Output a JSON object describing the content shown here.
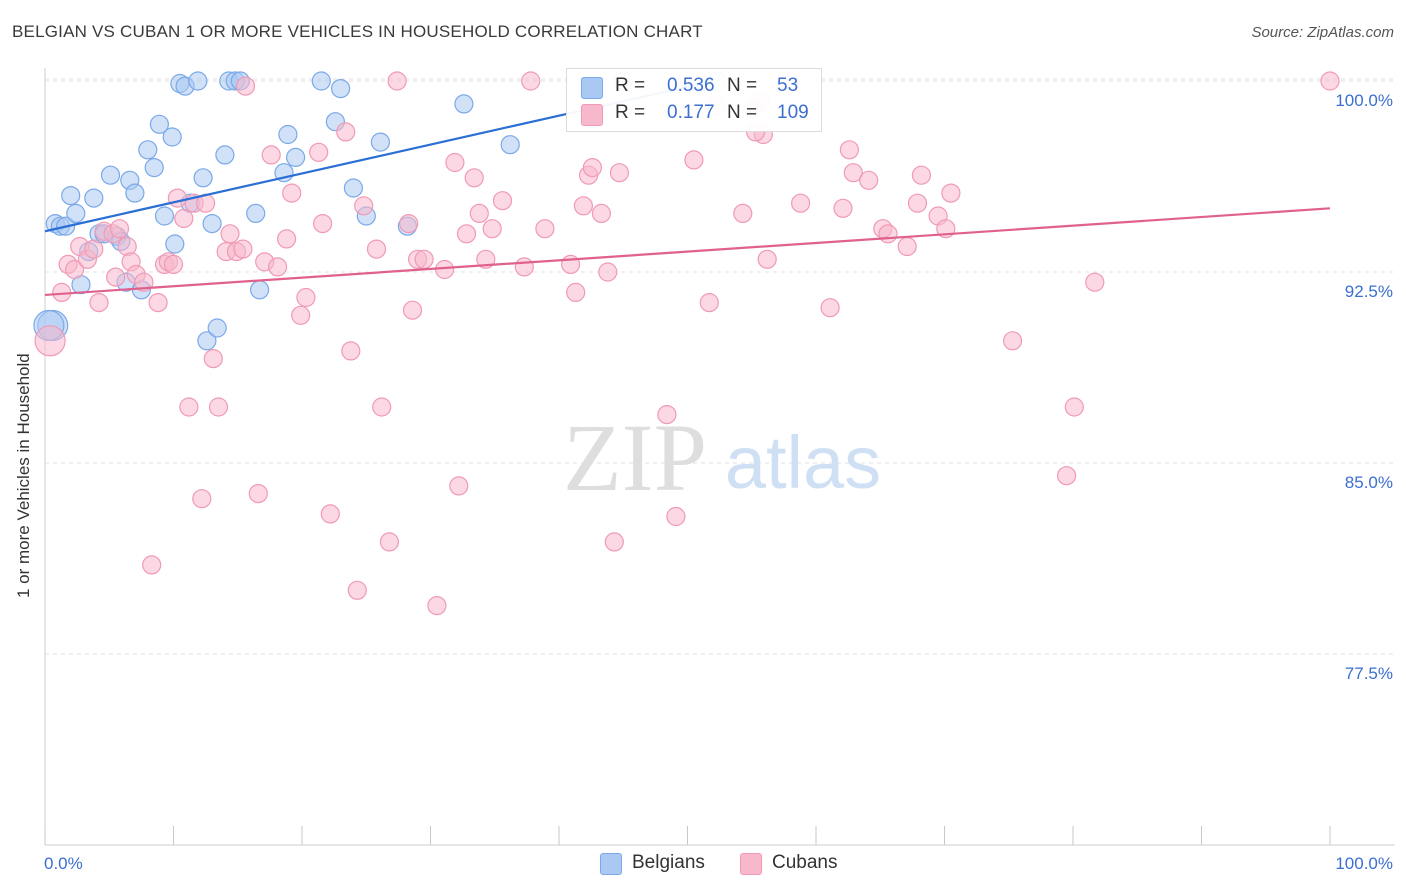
{
  "title": "BELGIAN VS CUBAN 1 OR MORE VEHICLES IN HOUSEHOLD CORRELATION CHART",
  "source": "Source: ZipAtlas.com",
  "watermark": {
    "zip": "ZIP",
    "atlas": "atlas"
  },
  "legend": {
    "rows": [
      {
        "r_label": "R =",
        "r_value": "0.536",
        "n_label": "N =",
        "n_value": "53",
        "color": "#a9c8f2"
      },
      {
        "r_label": "R =",
        "r_value": "0.177",
        "n_label": "N =",
        "n_value": "109",
        "color": "#f7b8cc"
      }
    ]
  },
  "bottom_legend": {
    "belgians": "Belgians",
    "cubans": "Cubans"
  },
  "chart_data": {
    "type": "scatter",
    "title": "BELGIAN VS CUBAN 1 OR MORE VEHICLES IN HOUSEHOLD CORRELATION CHART",
    "xlabel": "",
    "ylabel": "1 or more Vehicles in Household",
    "xlim": [
      0,
      100
    ],
    "ylim": [
      70.0,
      101.0
    ],
    "x_tick_labels": [
      "0.0%",
      "100.0%"
    ],
    "y_ticks": [
      77.5,
      85.0,
      92.5,
      100.0
    ],
    "y_tick_labels": [
      "77.5%",
      "85.0%",
      "92.5%",
      "100.0%"
    ],
    "grid": true,
    "legend_placement": "bottom-center",
    "series": [
      {
        "name": "Belgians",
        "color": "#7aa9e8",
        "fill": "#a9c8f2",
        "trend": {
          "x": [
            0,
            52
          ],
          "y": [
            94.1,
            100.0
          ],
          "color": "#2b6fd4"
        },
        "points": [
          [
            0.6,
            90.4
          ],
          [
            0.8,
            94.4
          ],
          [
            1.2,
            94.3
          ],
          [
            1.6,
            94.3
          ],
          [
            2.0,
            95.5
          ],
          [
            2.4,
            94.8
          ],
          [
            2.8,
            92.0
          ],
          [
            3.4,
            93.3
          ],
          [
            3.8,
            95.4
          ],
          [
            4.2,
            94.0
          ],
          [
            4.6,
            94.0
          ],
          [
            5.1,
            96.3
          ],
          [
            5.6,
            93.9
          ],
          [
            5.9,
            93.7
          ],
          [
            6.3,
            92.1
          ],
          [
            6.6,
            96.1
          ],
          [
            7.0,
            95.6
          ],
          [
            7.5,
            91.8
          ],
          [
            8.0,
            97.3
          ],
          [
            8.5,
            96.6
          ],
          [
            8.9,
            98.3
          ],
          [
            9.3,
            94.7
          ],
          [
            9.9,
            97.8
          ],
          [
            10.1,
            93.6
          ],
          [
            10.5,
            99.9
          ],
          [
            10.9,
            99.8
          ],
          [
            11.3,
            95.2
          ],
          [
            11.9,
            100.0
          ],
          [
            12.3,
            96.2
          ],
          [
            12.6,
            89.8
          ],
          [
            13.0,
            94.4
          ],
          [
            13.4,
            90.3
          ],
          [
            14.0,
            97.1
          ],
          [
            14.3,
            100.0
          ],
          [
            14.8,
            100.0
          ],
          [
            15.2,
            100.0
          ],
          [
            16.4,
            94.8
          ],
          [
            16.7,
            91.8
          ],
          [
            18.6,
            96.4
          ],
          [
            18.9,
            97.9
          ],
          [
            19.5,
            97.0
          ],
          [
            21.5,
            100.0
          ],
          [
            22.6,
            98.4
          ],
          [
            23.0,
            99.7
          ],
          [
            24.0,
            95.8
          ],
          [
            25.0,
            94.7
          ],
          [
            26.1,
            97.6
          ],
          [
            28.2,
            94.3
          ],
          [
            32.6,
            99.1
          ],
          [
            36.2,
            97.5
          ],
          [
            45.0,
            100.0
          ],
          [
            52.3,
            100.0
          ],
          [
            0.3,
            90.4
          ]
        ]
      },
      {
        "name": "Cubans",
        "color": "#f09ab5",
        "fill": "#f7b8cc",
        "trend": {
          "x": [
            0,
            100
          ],
          "y": [
            91.6,
            95.0
          ],
          "color": "#e0608e"
        },
        "points": [
          [
            0.4,
            89.8
          ],
          [
            1.3,
            91.7
          ],
          [
            1.8,
            92.8
          ],
          [
            2.3,
            92.6
          ],
          [
            2.7,
            93.5
          ],
          [
            3.3,
            93.0
          ],
          [
            3.8,
            93.4
          ],
          [
            4.2,
            91.3
          ],
          [
            4.6,
            94.1
          ],
          [
            5.3,
            94.0
          ],
          [
            5.5,
            92.3
          ],
          [
            5.8,
            94.2
          ],
          [
            6.4,
            93.5
          ],
          [
            6.7,
            92.9
          ],
          [
            7.1,
            92.4
          ],
          [
            7.7,
            92.1
          ],
          [
            8.3,
            81.0
          ],
          [
            8.8,
            91.3
          ],
          [
            9.3,
            92.8
          ],
          [
            9.6,
            92.9
          ],
          [
            10.0,
            92.8
          ],
          [
            10.3,
            95.4
          ],
          [
            10.8,
            94.6
          ],
          [
            11.2,
            87.2
          ],
          [
            11.6,
            95.2
          ],
          [
            12.2,
            83.6
          ],
          [
            12.5,
            95.2
          ],
          [
            13.1,
            89.1
          ],
          [
            13.5,
            87.2
          ],
          [
            14.1,
            93.3
          ],
          [
            14.4,
            94.0
          ],
          [
            14.9,
            93.3
          ],
          [
            15.4,
            93.4
          ],
          [
            15.6,
            99.8
          ],
          [
            16.6,
            83.8
          ],
          [
            17.1,
            92.9
          ],
          [
            17.6,
            97.1
          ],
          [
            18.1,
            92.7
          ],
          [
            18.8,
            93.8
          ],
          [
            19.2,
            95.6
          ],
          [
            19.9,
            90.8
          ],
          [
            20.3,
            91.5
          ],
          [
            21.3,
            97.2
          ],
          [
            21.6,
            94.4
          ],
          [
            22.2,
            83.0
          ],
          [
            23.4,
            98.0
          ],
          [
            23.8,
            89.4
          ],
          [
            24.3,
            80.0
          ],
          [
            24.8,
            95.1
          ],
          [
            25.8,
            93.4
          ],
          [
            26.2,
            87.2
          ],
          [
            26.8,
            81.9
          ],
          [
            27.4,
            100.0
          ],
          [
            28.3,
            94.4
          ],
          [
            28.6,
            91.0
          ],
          [
            29.0,
            93.0
          ],
          [
            29.5,
            93.0
          ],
          [
            30.5,
            79.4
          ],
          [
            31.1,
            92.6
          ],
          [
            31.9,
            96.8
          ],
          [
            32.2,
            84.1
          ],
          [
            32.8,
            94.0
          ],
          [
            33.4,
            96.2
          ],
          [
            33.8,
            94.8
          ],
          [
            34.3,
            93.0
          ],
          [
            34.8,
            94.2
          ],
          [
            35.6,
            95.3
          ],
          [
            37.3,
            92.7
          ],
          [
            37.8,
            100.0
          ],
          [
            38.9,
            94.2
          ],
          [
            40.9,
            92.8
          ],
          [
            41.3,
            91.7
          ],
          [
            41.9,
            95.1
          ],
          [
            42.3,
            96.3
          ],
          [
            42.6,
            96.6
          ],
          [
            43.3,
            94.8
          ],
          [
            43.8,
            92.5
          ],
          [
            44.3,
            81.9
          ],
          [
            44.7,
            96.4
          ],
          [
            48.4,
            86.9
          ],
          [
            49.1,
            82.9
          ],
          [
            50.5,
            96.9
          ],
          [
            51.7,
            91.3
          ],
          [
            52.2,
            99.0
          ],
          [
            54.3,
            94.8
          ],
          [
            55.1,
            98.9
          ],
          [
            55.9,
            97.9
          ],
          [
            55.3,
            98.0
          ],
          [
            55.7,
            99.2
          ],
          [
            56.2,
            93.0
          ],
          [
            58.8,
            95.2
          ],
          [
            61.1,
            91.1
          ],
          [
            62.1,
            95.0
          ],
          [
            62.6,
            97.3
          ],
          [
            62.9,
            96.4
          ],
          [
            64.1,
            96.1
          ],
          [
            65.2,
            94.2
          ],
          [
            65.6,
            94.0
          ],
          [
            67.1,
            93.5
          ],
          [
            67.9,
            95.2
          ],
          [
            68.2,
            96.3
          ],
          [
            69.5,
            94.7
          ],
          [
            70.1,
            94.2
          ],
          [
            70.5,
            95.6
          ],
          [
            75.3,
            89.8
          ],
          [
            79.5,
            84.5
          ],
          [
            80.1,
            87.2
          ],
          [
            81.7,
            92.1
          ],
          [
            100.0,
            100.0
          ]
        ]
      }
    ]
  }
}
